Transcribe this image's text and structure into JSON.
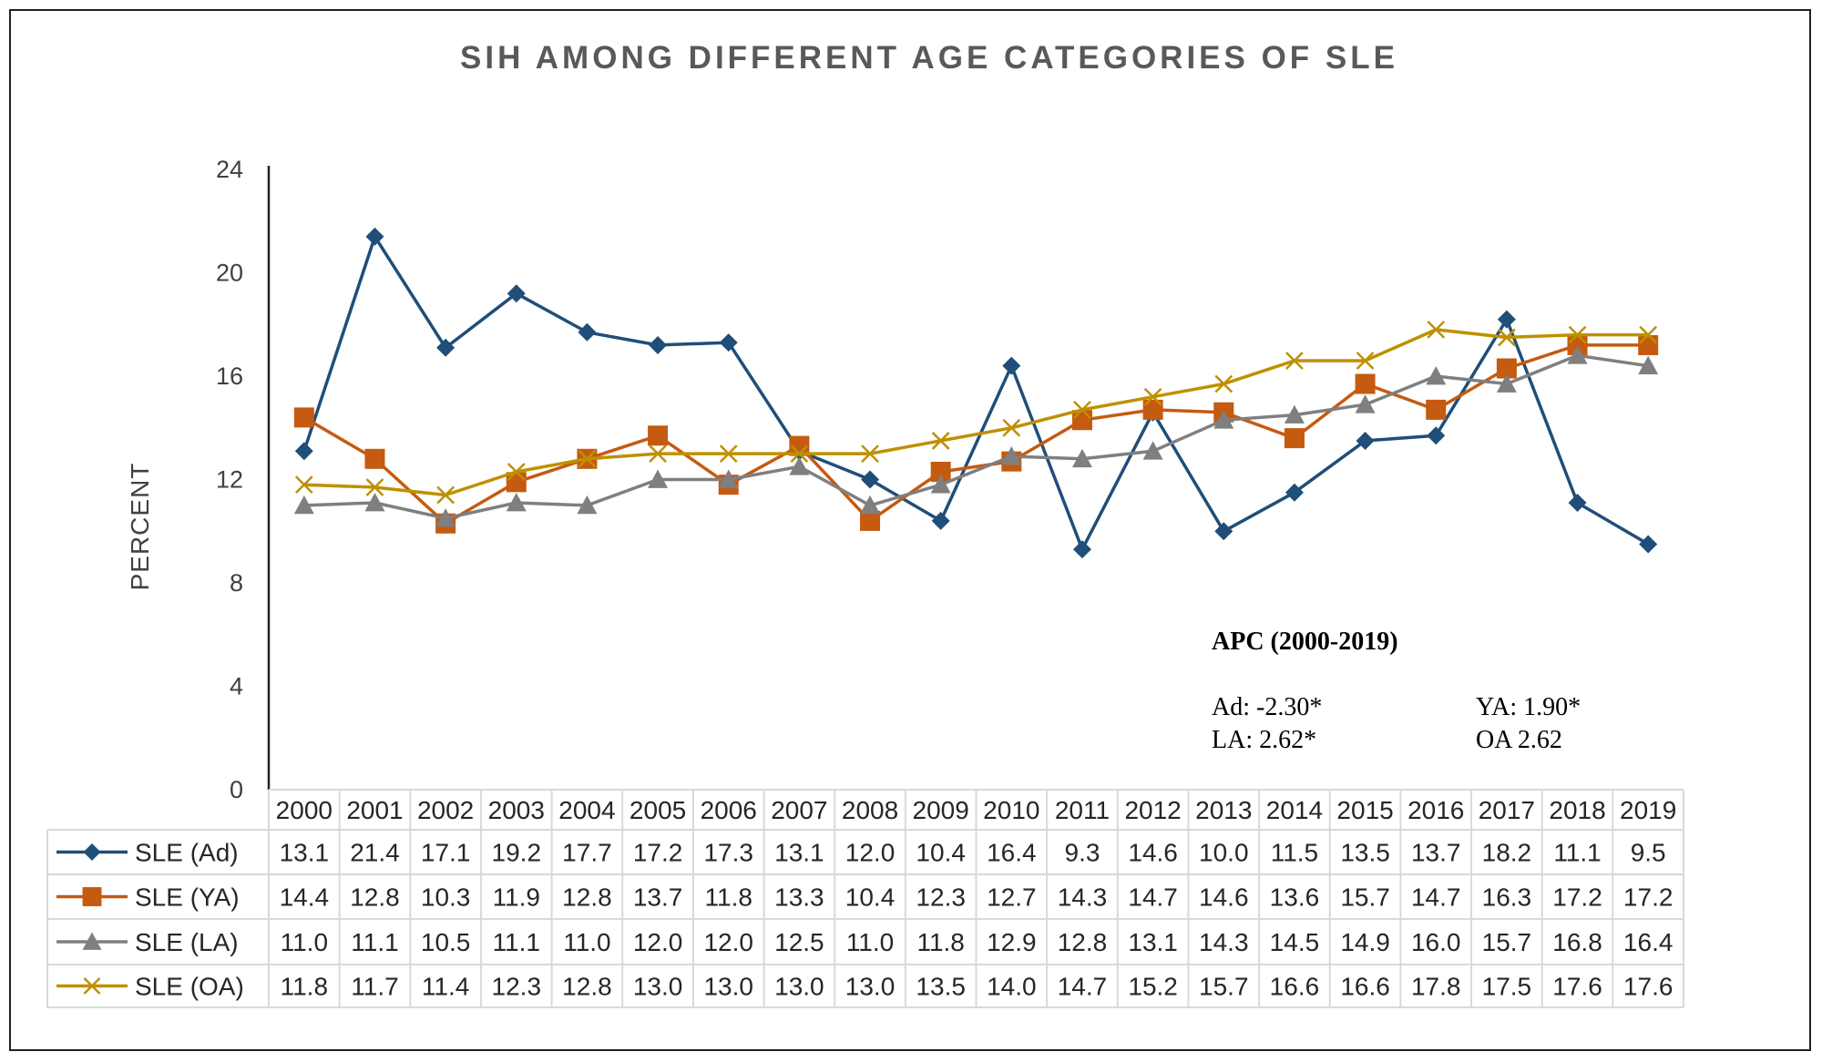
{
  "chart_data": {
    "type": "line",
    "title": "SIH AMONG DIFFERENT AGE CATEGORIES OF SLE",
    "xlabel": "",
    "ylabel": "PERCENT",
    "ylim": [
      0,
      24
    ],
    "yticks": [
      0,
      4,
      8,
      12,
      16,
      20,
      24
    ],
    "grid": false,
    "legend": "data-table-left",
    "categories": [
      "2000",
      "2001",
      "2002",
      "2003",
      "2004",
      "2005",
      "2006",
      "2007",
      "2008",
      "2009",
      "2010",
      "2011",
      "2012",
      "2013",
      "2014",
      "2015",
      "2016",
      "2017",
      "2018",
      "2019"
    ],
    "series": [
      {
        "name": "SLE (Ad)",
        "color": "#1f4e79",
        "marker": "diamond",
        "values": [
          13.1,
          21.4,
          17.1,
          19.2,
          17.7,
          17.2,
          17.3,
          13.1,
          12.0,
          10.4,
          16.4,
          9.3,
          14.6,
          10.0,
          11.5,
          13.5,
          13.7,
          18.2,
          11.1,
          9.5
        ],
        "labels": [
          "13.1",
          "21.4",
          "17.1",
          "19.2",
          "17.7",
          "17.2",
          "17.3",
          "13.1",
          "12.0",
          "10.4",
          "16.4",
          "9.3",
          "14.6",
          "10.0",
          "11.5",
          "13.5",
          "13.7",
          "18.2",
          "11.1",
          "9.5"
        ]
      },
      {
        "name": "SLE (YA)",
        "color": "#c55a11",
        "marker": "square",
        "values": [
          14.4,
          12.8,
          10.3,
          11.9,
          12.8,
          13.7,
          11.8,
          13.3,
          10.4,
          12.3,
          12.7,
          14.3,
          14.7,
          14.6,
          13.6,
          15.7,
          14.7,
          16.3,
          17.2,
          17.2
        ],
        "labels": [
          "14.4",
          "12.8",
          "10.3",
          "11.9",
          "12.8",
          "13.7",
          "11.8",
          "13.3",
          "10.4",
          "12.3",
          "12.7",
          "14.3",
          "14.7",
          "14.6",
          "13.6",
          "15.7",
          "14.7",
          "16.3",
          "17.2",
          "17.2"
        ]
      },
      {
        "name": "SLE (LA)",
        "color": "#7f7f7f",
        "marker": "triangle",
        "values": [
          11.0,
          11.1,
          10.5,
          11.1,
          11.0,
          12.0,
          12.0,
          12.5,
          11.0,
          11.8,
          12.9,
          12.8,
          13.1,
          14.3,
          14.5,
          14.9,
          16.0,
          15.7,
          16.8,
          16.4
        ],
        "labels": [
          "11.0",
          "11.1",
          "10.5",
          "11.1",
          "11.0",
          "12.0",
          "12.0",
          "12.5",
          "11.0",
          "11.8",
          "12.9",
          "12.8",
          "13.1",
          "14.3",
          "14.5",
          "14.9",
          "16.0",
          "15.7",
          "16.8",
          "16.4"
        ]
      },
      {
        "name": "SLE (OA)",
        "color": "#bf9000",
        "marker": "x",
        "values": [
          11.8,
          11.7,
          11.4,
          12.3,
          12.8,
          13.0,
          13.0,
          13.0,
          13.0,
          13.5,
          14.0,
          14.7,
          15.2,
          15.7,
          16.6,
          16.6,
          17.8,
          17.5,
          17.6,
          17.6
        ],
        "labels": [
          "11.8",
          "11.7",
          "11.4",
          "12.3",
          "12.8",
          "13.0",
          "13.0",
          "13.0",
          "13.0",
          "13.5",
          "14.0",
          "14.7",
          "15.2",
          "15.7",
          "16.6",
          "16.6",
          "17.8",
          "17.5",
          "17.6",
          "17.6"
        ]
      }
    ],
    "annotation": {
      "title": "APC (2000-2019)",
      "entries": [
        "Ad: -2.30*",
        "YA: 1.90*",
        "LA: 2.62*",
        "OA 2.62"
      ]
    }
  }
}
